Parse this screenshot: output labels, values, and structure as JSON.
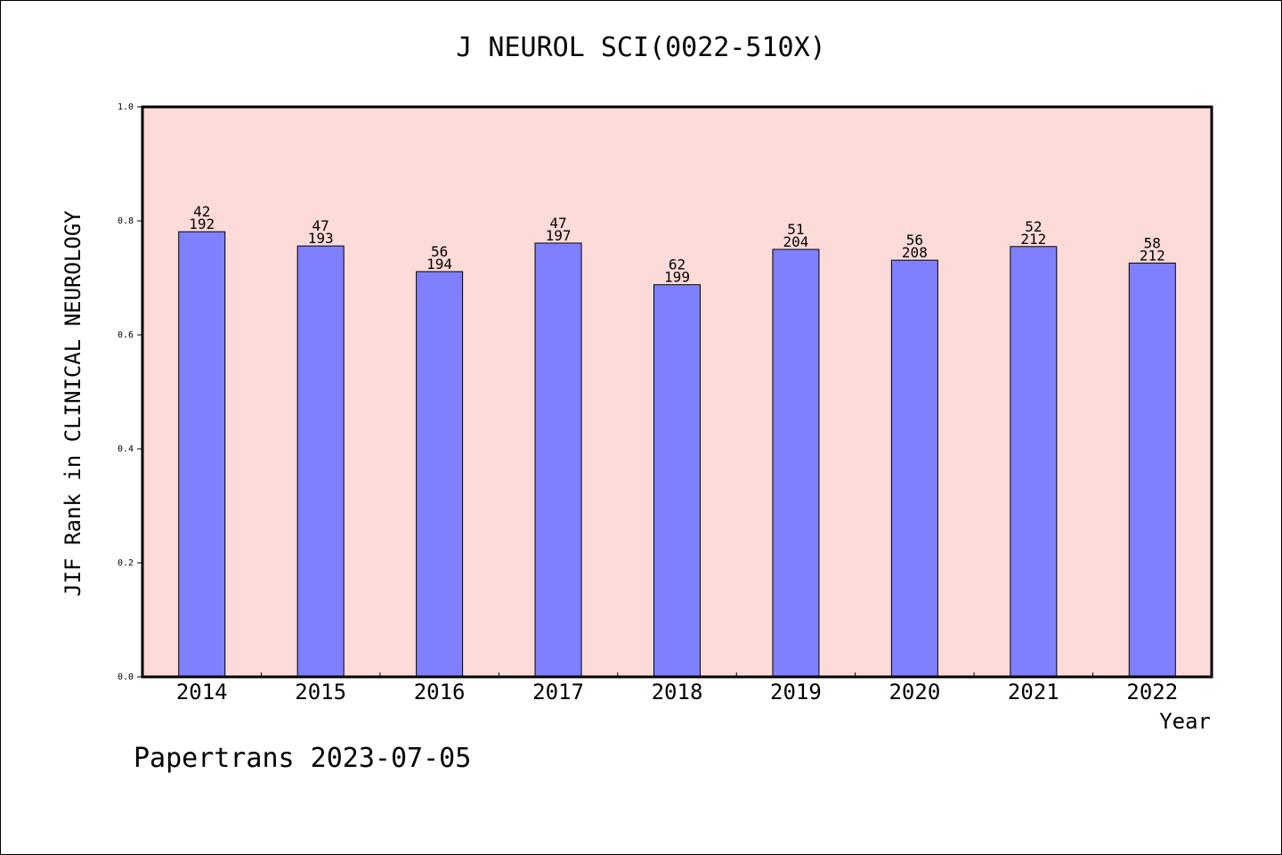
{
  "chart_data": {
    "type": "bar",
    "title": "J NEUROL SCI(0022-510X)",
    "xlabel": "Year",
    "ylabel": "JIF Rank in CLINICAL NEUROLOGY",
    "ylim": [
      0,
      1.0
    ],
    "yticks": [
      "0.0",
      "0.2",
      "0.4",
      "0.6",
      "0.8",
      "1.0"
    ],
    "categories": [
      "2014",
      "2015",
      "2016",
      "2017",
      "2018",
      "2019",
      "2020",
      "2021",
      "2022"
    ],
    "values": [
      0.781,
      0.756,
      0.711,
      0.761,
      0.688,
      0.75,
      0.731,
      0.755,
      0.726
    ],
    "rank": [
      "42",
      "47",
      "56",
      "47",
      "62",
      "51",
      "56",
      "52",
      "58"
    ],
    "total": [
      "192",
      "193",
      "194",
      "197",
      "199",
      "204",
      "208",
      "212",
      "212"
    ],
    "colors": {
      "plot_bg": "#fddbd8",
      "bar": "#8080ff"
    },
    "grid": false,
    "legend": "none"
  },
  "footer": "Papertrans 2023-07-05"
}
